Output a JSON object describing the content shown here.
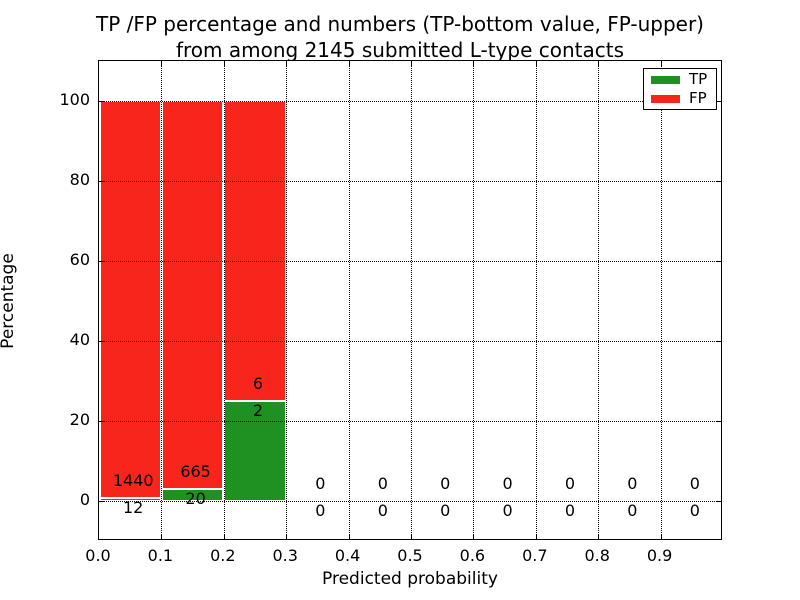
{
  "chart_data": {
    "type": "bar",
    "stacked": true,
    "title_line1": "TP /FP percentage and numbers (TP-bottom value, FP-upper)",
    "title_line2": "from among 2145 submitted L-type contacts",
    "total_submitted_contacts": 2145,
    "xlabel": "Predicted probability",
    "ylabel": "Percentage",
    "xlim": [
      0.0,
      1.0
    ],
    "ylim": [
      -10,
      110
    ],
    "grid": true,
    "x_ticks": [
      {
        "value": 0.0,
        "label": "0.0"
      },
      {
        "value": 0.1,
        "label": "0.1"
      },
      {
        "value": 0.2,
        "label": "0.2"
      },
      {
        "value": 0.3,
        "label": "0.3"
      },
      {
        "value": 0.4,
        "label": "0.4"
      },
      {
        "value": 0.5,
        "label": "0.5"
      },
      {
        "value": 0.6,
        "label": "0.6"
      },
      {
        "value": 0.7,
        "label": "0.7"
      },
      {
        "value": 0.8,
        "label": "0.8"
      },
      {
        "value": 0.9,
        "label": "0.9"
      }
    ],
    "y_ticks": [
      {
        "value": 0,
        "label": "0"
      },
      {
        "value": 20,
        "label": "20"
      },
      {
        "value": 40,
        "label": "40"
      },
      {
        "value": 60,
        "label": "60"
      },
      {
        "value": 80,
        "label": "80"
      },
      {
        "value": 100,
        "label": "100"
      }
    ],
    "bins": [
      {
        "range": [
          0.0,
          0.1
        ],
        "tp_count": 12,
        "fp_count": 1440,
        "tp_pct": 0.83,
        "fp_pct": 99.17
      },
      {
        "range": [
          0.1,
          0.2
        ],
        "tp_count": 20,
        "fp_count": 665,
        "tp_pct": 2.92,
        "fp_pct": 97.08
      },
      {
        "range": [
          0.2,
          0.3
        ],
        "tp_count": 2,
        "fp_count": 6,
        "tp_pct": 25.0,
        "fp_pct": 75.0
      },
      {
        "range": [
          0.3,
          0.4
        ],
        "tp_count": 0,
        "fp_count": 0,
        "tp_pct": 0,
        "fp_pct": 0
      },
      {
        "range": [
          0.4,
          0.5
        ],
        "tp_count": 0,
        "fp_count": 0,
        "tp_pct": 0,
        "fp_pct": 0
      },
      {
        "range": [
          0.5,
          0.6
        ],
        "tp_count": 0,
        "fp_count": 0,
        "tp_pct": 0,
        "fp_pct": 0
      },
      {
        "range": [
          0.6,
          0.7
        ],
        "tp_count": 0,
        "fp_count": 0,
        "tp_pct": 0,
        "fp_pct": 0
      },
      {
        "range": [
          0.7,
          0.8
        ],
        "tp_count": 0,
        "fp_count": 0,
        "tp_pct": 0,
        "fp_pct": 0
      },
      {
        "range": [
          0.8,
          0.9
        ],
        "tp_count": 0,
        "fp_count": 0,
        "tp_pct": 0,
        "fp_pct": 0
      },
      {
        "range": [
          0.9,
          1.0
        ],
        "tp_count": 0,
        "fp_count": 0,
        "tp_pct": 0,
        "fp_pct": 0
      }
    ],
    "legend": [
      {
        "label": "TP",
        "color": "#1f9122"
      },
      {
        "label": "FP",
        "color": "#f8251c"
      }
    ],
    "legend_position": "upper right",
    "colors": {
      "tp": "#1f9122",
      "fp": "#f8251c",
      "grid": "#000000",
      "background": "#ffffff",
      "text": "#000000"
    }
  }
}
